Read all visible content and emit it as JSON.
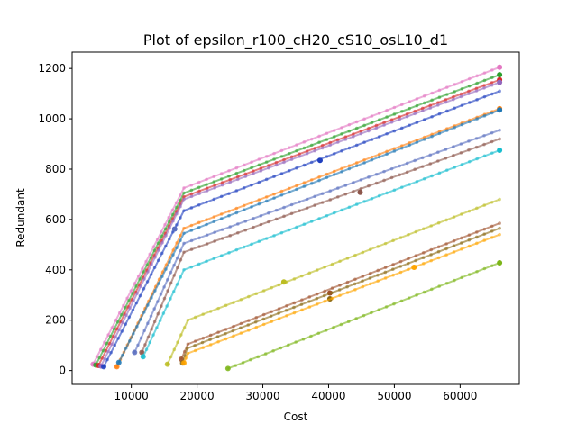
{
  "chart_data": {
    "type": "line",
    "title": "Plot of epsilon_r100_cH20_cS10_osL10_d1",
    "xlabel": "Cost",
    "ylabel": "Redundant",
    "xlim": [
      1000,
      69000
    ],
    "ylim": [
      -55,
      1265
    ],
    "xticks": [
      10000,
      20000,
      30000,
      40000,
      50000,
      60000
    ],
    "xtick_labels": [
      "10000",
      "20000",
      "30000",
      "40000",
      "50000",
      "60000"
    ],
    "yticks": [
      0,
      200,
      400,
      600,
      800,
      1000,
      1200
    ],
    "ytick_labels": [
      "0",
      "200",
      "400",
      "600",
      "800",
      "1000",
      "1200"
    ],
    "grid": false,
    "series": [
      {
        "color": "#e377c2",
        "points": [
          [
            4200,
            25
          ],
          [
            18000,
            725
          ],
          [
            66000,
            1205
          ]
        ],
        "highlight": [
          66000,
          1205
        ]
      },
      {
        "color": "#2ca02c",
        "points": [
          [
            4600,
            22
          ],
          [
            18000,
            705
          ],
          [
            66000,
            1175
          ]
        ],
        "highlight": [
          66000,
          1175
        ]
      },
      {
        "color": "#d62728",
        "points": [
          [
            5000,
            20
          ],
          [
            18000,
            690
          ],
          [
            66000,
            1155
          ]
        ],
        "highlight": [
          66000,
          1155
        ]
      },
      {
        "color": "#9467bd",
        "points": [
          [
            5400,
            18
          ],
          [
            18000,
            680
          ],
          [
            66000,
            1145
          ]
        ],
        "highlight": [
          66000,
          1145
        ]
      },
      {
        "color": "#1f3fbf",
        "points": [
          [
            5800,
            15
          ],
          [
            18000,
            635
          ],
          [
            66000,
            1110
          ]
        ],
        "highlight": [
          38700,
          835
        ]
      },
      {
        "color": "#ff7f0e",
        "points": [
          [
            7800,
            15
          ],
          [
            18000,
            565
          ],
          [
            66000,
            1040
          ]
        ],
        "highlight": [
          66000,
          1040
        ]
      },
      {
        "color": "#1f77b4",
        "points": [
          [
            8100,
            32
          ],
          [
            18000,
            545
          ],
          [
            66000,
            1035
          ]
        ],
        "highlight": [
          66000,
          1035
        ]
      },
      {
        "color": "#5a6fc0",
        "points": [
          [
            10500,
            72
          ],
          [
            18000,
            505
          ],
          [
            66000,
            955
          ]
        ],
        "highlight": [
          16600,
          562
        ]
      },
      {
        "color": "#8c564b",
        "points": [
          [
            11600,
            72
          ],
          [
            18000,
            470
          ],
          [
            66000,
            920
          ]
        ],
        "highlight": [
          44800,
          708
        ]
      },
      {
        "color": "#17becf",
        "points": [
          [
            11800,
            55
          ],
          [
            18000,
            400
          ],
          [
            66000,
            875
          ]
        ],
        "highlight": [
          66000,
          875
        ]
      },
      {
        "color": "#bcbd22",
        "points": [
          [
            15500,
            25
          ],
          [
            18600,
            200
          ],
          [
            66000,
            680
          ]
        ],
        "highlight": [
          33200,
          352
        ]
      },
      {
        "color": "#a0522d",
        "points": [
          [
            17600,
            45
          ],
          [
            18600,
            105
          ],
          [
            66000,
            585
          ]
        ],
        "highlight": [
          40200,
          308
        ]
      },
      {
        "color": "#8b6914",
        "points": [
          [
            17800,
            30
          ],
          [
            18500,
            88
          ],
          [
            66000,
            565
          ]
        ],
        "highlight": [
          40200,
          285
        ]
      },
      {
        "color": "#ffa500",
        "points": [
          [
            18000,
            30
          ],
          [
            18600,
            68
          ],
          [
            66000,
            540
          ]
        ],
        "highlight": [
          53000,
          410
        ]
      },
      {
        "color": "#7cb518",
        "points": [
          [
            24700,
            8
          ],
          [
            66000,
            428
          ]
        ],
        "highlight": [
          66000,
          428
        ]
      }
    ]
  }
}
